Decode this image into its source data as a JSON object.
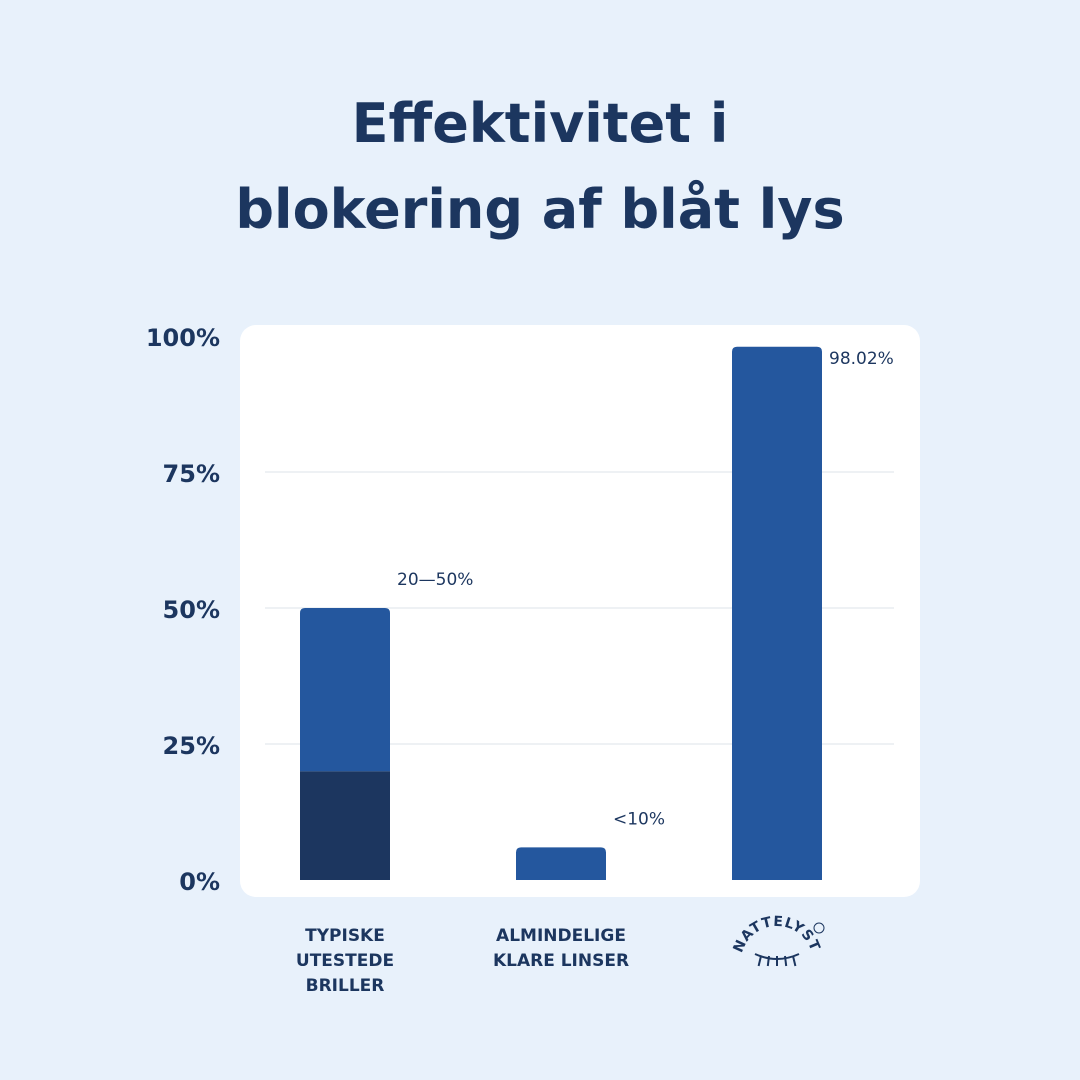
{
  "chart_data": {
    "type": "bar",
    "title": [
      "Effektivitet i",
      "blokering af blåt lys"
    ],
    "categories": [
      "TYPISKE UTESTEDE BRILLER",
      "ALMINDELIGE KLARE LINSER",
      "NATTELYST"
    ],
    "series": [
      {
        "color": "#1c365f",
        "values": [
          20,
          null,
          null
        ]
      },
      {
        "color": "#24579e",
        "values": [
          30,
          6,
          98.02
        ]
      }
    ],
    "value_labels": [
      "20—50%",
      "<10%",
      "98.02%"
    ],
    "ylim": [
      0,
      100
    ],
    "yticks": [
      {
        "value": 0,
        "label": "0%"
      },
      {
        "value": 25,
        "label": "25%"
      },
      {
        "value": 50,
        "label": "50%"
      },
      {
        "value": 75,
        "label": "75%"
      },
      {
        "value": 100,
        "label": "100%"
      }
    ],
    "grid": true
  }
}
